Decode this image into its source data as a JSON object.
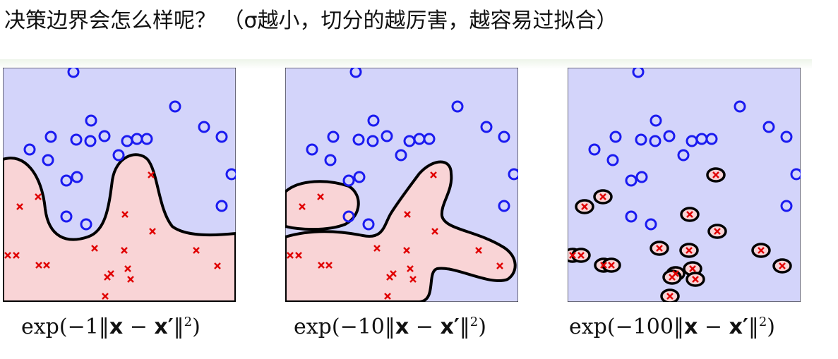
{
  "title": "决策边界会怎么样呢？ （σ越小，切分的越厉害，越容易过拟合）",
  "panels": [
    {
      "caption_pre": "exp(−1‖",
      "caption_x": "x",
      "caption_minus": " − ",
      "caption_xp": "x′",
      "caption_post": "‖",
      "caption_exp": "2",
      "caption_close": ")"
    },
    {
      "caption_pre": "exp(−10‖",
      "caption_x": "x",
      "caption_minus": " − ",
      "caption_xp": "x′",
      "caption_post": "‖",
      "caption_exp": "2",
      "caption_close": ")"
    },
    {
      "caption_pre": "exp(−100‖",
      "caption_x": "x",
      "caption_minus": " − ",
      "caption_xp": "x′",
      "caption_post": "‖",
      "caption_exp": "2",
      "caption_close": ")"
    }
  ],
  "colors": {
    "blue_region": "#d3d4fa",
    "red_region": "#f9d4d6",
    "circle": "#1a1af0",
    "cross": "#e00000",
    "boundary": "#000000"
  }
}
